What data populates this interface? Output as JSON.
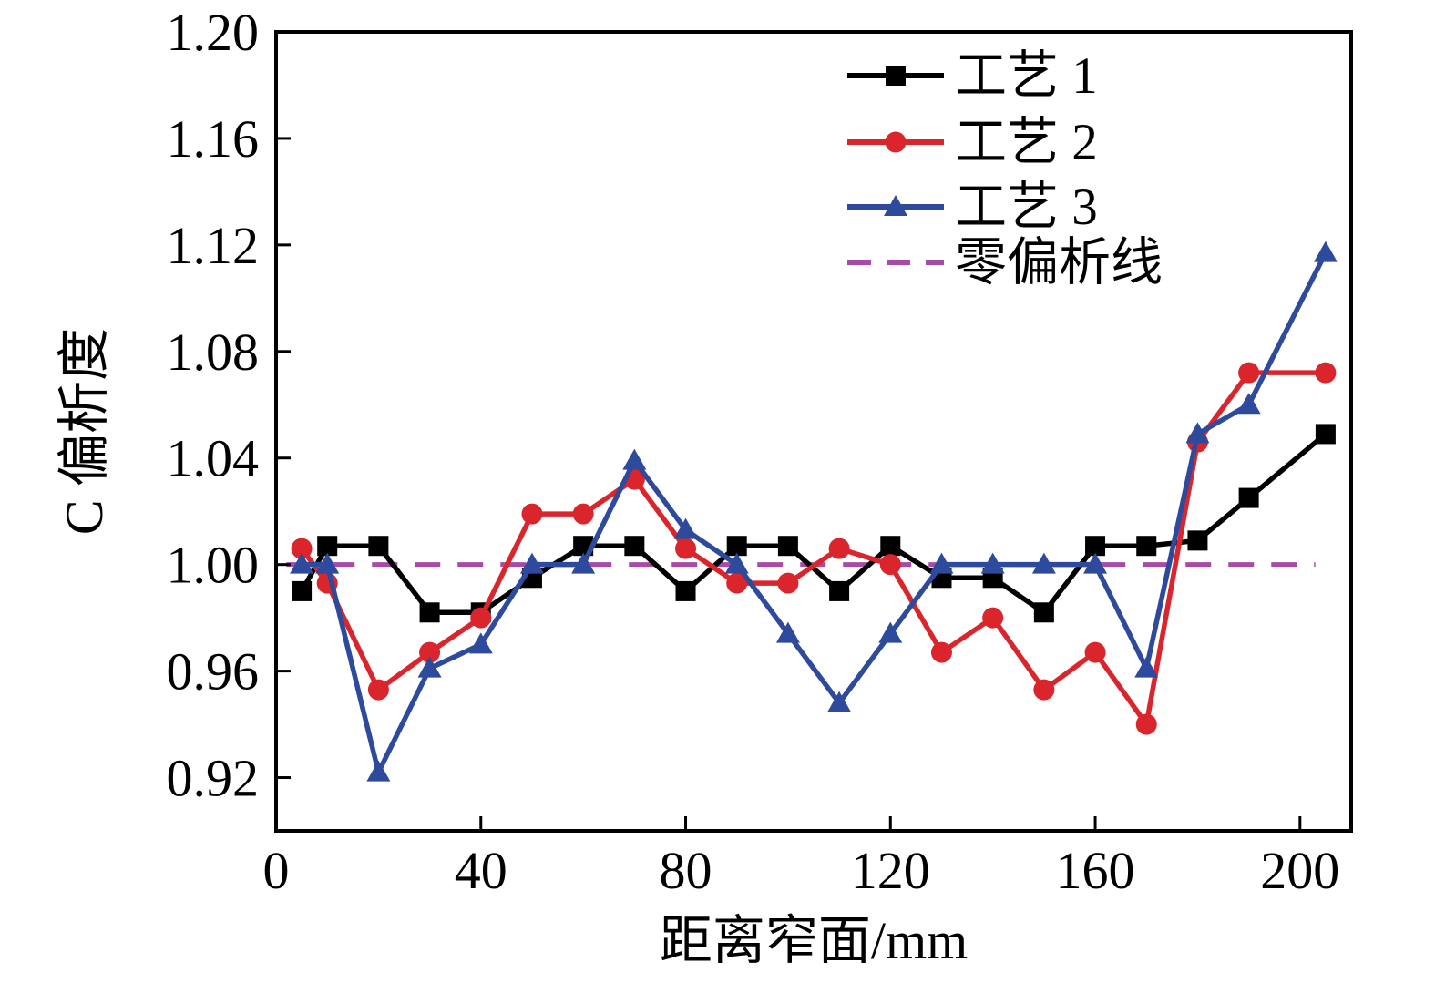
{
  "chart_data": {
    "type": "line",
    "title": "",
    "xlabel": "距离窄面/mm",
    "ylabel": "C 偏析度",
    "xlim": [
      0,
      210
    ],
    "ylim": [
      0.9,
      1.2
    ],
    "xticks": [
      0,
      40,
      80,
      120,
      160,
      200
    ],
    "yticks": [
      0.92,
      0.96,
      1.0,
      1.04,
      1.08,
      1.12,
      1.16,
      1.2
    ],
    "grid": false,
    "legend_position": "top-right-inside",
    "x": [
      5,
      10,
      20,
      30,
      40,
      50,
      60,
      70,
      80,
      90,
      100,
      110,
      120,
      130,
      140,
      150,
      160,
      170,
      180,
      190,
      205
    ],
    "series": [
      {
        "name": "工艺 1",
        "color": "#000000",
        "marker": "square",
        "values": [
          0.99,
          1.007,
          1.007,
          0.982,
          0.982,
          0.995,
          1.007,
          1.007,
          0.99,
          1.007,
          1.007,
          0.99,
          1.007,
          0.995,
          0.995,
          0.982,
          1.007,
          1.007,
          1.009,
          1.025,
          1.049
        ]
      },
      {
        "name": "工艺 2",
        "color": "#d9252b",
        "marker": "circle",
        "values": [
          1.006,
          0.993,
          0.953,
          0.967,
          0.98,
          1.019,
          1.019,
          1.032,
          1.006,
          0.993,
          0.993,
          1.006,
          1.0,
          0.967,
          0.98,
          0.953,
          0.967,
          0.94,
          1.046,
          1.072,
          1.072
        ]
      },
      {
        "name": "工艺 3",
        "color": "#2d4a9d",
        "marker": "triangle",
        "values": [
          1.0,
          1.0,
          0.922,
          0.961,
          0.97,
          1.0,
          1.0,
          1.039,
          1.013,
          1.0,
          0.974,
          0.948,
          0.974,
          1.0,
          1.0,
          1.0,
          1.0,
          0.961,
          1.049,
          1.06,
          1.117
        ]
      }
    ],
    "reference_line": {
      "name": "零偏析线",
      "value": 1.0,
      "color": "#a64ca6",
      "style": "dashed",
      "x_start": 2,
      "x_end": 203
    },
    "axis_color": "#000000"
  }
}
